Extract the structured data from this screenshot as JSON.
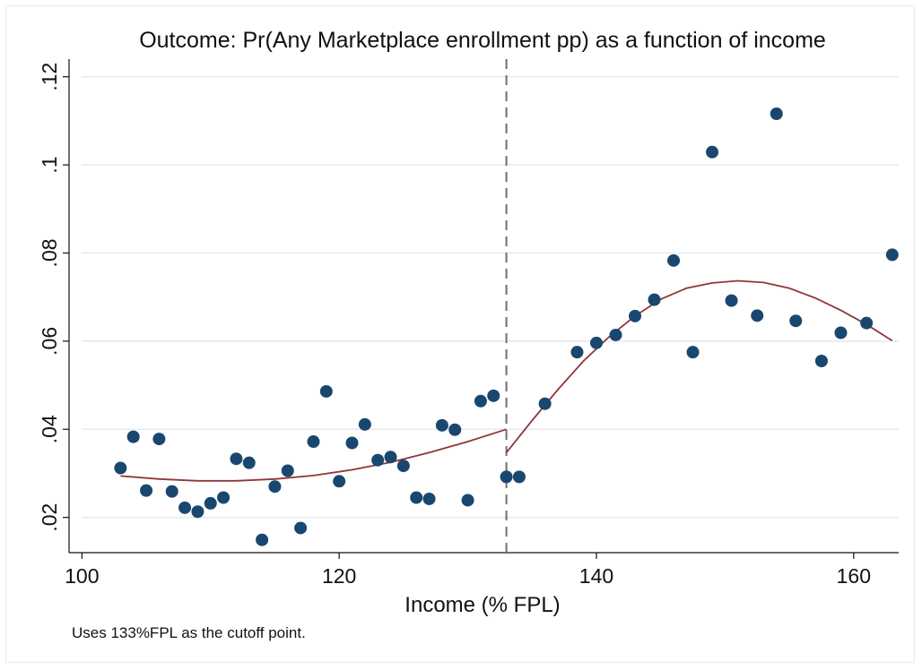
{
  "chart_data": {
    "type": "scatter",
    "title": "Outcome: Pr(Any Marketplace enrollment pp) as a function of income",
    "xlabel": "Income (% FPL)",
    "ylabel": "",
    "note": "Uses 133%FPL as the cutoff point.",
    "xlim": [
      99,
      163.5
    ],
    "ylim": [
      0.012,
      0.124
    ],
    "xticks": [
      {
        "value": 100,
        "label": "100"
      },
      {
        "value": 120,
        "label": "120"
      },
      {
        "value": 140,
        "label": "140"
      },
      {
        "value": 160,
        "label": "160"
      }
    ],
    "yticks": [
      {
        "value": 0.02,
        "label": ".02"
      },
      {
        "value": 0.04,
        "label": ".04"
      },
      {
        "value": 0.06,
        "label": ".06"
      },
      {
        "value": 0.08,
        "label": ".08"
      },
      {
        "value": 0.1,
        "label": ".1"
      },
      {
        "value": 0.12,
        "label": ".12"
      }
    ],
    "grid": true,
    "cutoff": 133,
    "colors": {
      "points": "#1a476f",
      "fit": "#90353b",
      "cutoff": "#6f6f6f",
      "grid": "#e5ebf0"
    },
    "points": [
      {
        "x": 103,
        "y": 0.0312
      },
      {
        "x": 104,
        "y": 0.0383
      },
      {
        "x": 105,
        "y": 0.0261
      },
      {
        "x": 106,
        "y": 0.0378
      },
      {
        "x": 107,
        "y": 0.0259
      },
      {
        "x": 108,
        "y": 0.0222
      },
      {
        "x": 109,
        "y": 0.0213
      },
      {
        "x": 110,
        "y": 0.0232
      },
      {
        "x": 111,
        "y": 0.0245
      },
      {
        "x": 112,
        "y": 0.0333
      },
      {
        "x": 113,
        "y": 0.0324
      },
      {
        "x": 114,
        "y": 0.0149
      },
      {
        "x": 115,
        "y": 0.027
      },
      {
        "x": 116,
        "y": 0.0306
      },
      {
        "x": 117,
        "y": 0.0176
      },
      {
        "x": 118,
        "y": 0.0372
      },
      {
        "x": 119,
        "y": 0.0486
      },
      {
        "x": 120,
        "y": 0.0282
      },
      {
        "x": 121,
        "y": 0.0369
      },
      {
        "x": 122,
        "y": 0.0411
      },
      {
        "x": 123,
        "y": 0.033
      },
      {
        "x": 124,
        "y": 0.0337
      },
      {
        "x": 125,
        "y": 0.0317
      },
      {
        "x": 126,
        "y": 0.0245
      },
      {
        "x": 127,
        "y": 0.0242
      },
      {
        "x": 128,
        "y": 0.0409
      },
      {
        "x": 129,
        "y": 0.0399
      },
      {
        "x": 130,
        "y": 0.0239
      },
      {
        "x": 131,
        "y": 0.0464
      },
      {
        "x": 132,
        "y": 0.0476
      },
      {
        "x": 133,
        "y": 0.0292
      },
      {
        "x": 134,
        "y": 0.0292
      },
      {
        "x": 136,
        "y": 0.0458
      },
      {
        "x": 138.5,
        "y": 0.0575
      },
      {
        "x": 140,
        "y": 0.0596
      },
      {
        "x": 141.5,
        "y": 0.0614
      },
      {
        "x": 143,
        "y": 0.0657
      },
      {
        "x": 144.5,
        "y": 0.0694
      },
      {
        "x": 146,
        "y": 0.0783
      },
      {
        "x": 147.5,
        "y": 0.0575
      },
      {
        "x": 149,
        "y": 0.1029
      },
      {
        "x": 150.5,
        "y": 0.0692
      },
      {
        "x": 152.5,
        "y": 0.0658
      },
      {
        "x": 154,
        "y": 0.1116
      },
      {
        "x": 155.5,
        "y": 0.0646
      },
      {
        "x": 157.5,
        "y": 0.0555
      },
      {
        "x": 159,
        "y": 0.0619
      },
      {
        "x": 161,
        "y": 0.0641
      },
      {
        "x": 163,
        "y": 0.0796
      }
    ],
    "fit_left": [
      {
        "x": 103,
        "y": 0.0294
      },
      {
        "x": 106,
        "y": 0.0287
      },
      {
        "x": 109,
        "y": 0.0283
      },
      {
        "x": 112,
        "y": 0.0283
      },
      {
        "x": 115,
        "y": 0.0287
      },
      {
        "x": 118,
        "y": 0.0295
      },
      {
        "x": 121,
        "y": 0.0308
      },
      {
        "x": 124,
        "y": 0.0325
      },
      {
        "x": 127,
        "y": 0.0347
      },
      {
        "x": 130,
        "y": 0.0372
      },
      {
        "x": 133,
        "y": 0.04
      }
    ],
    "fit_right": [
      {
        "x": 133,
        "y": 0.0347
      },
      {
        "x": 135,
        "y": 0.042
      },
      {
        "x": 137,
        "y": 0.049
      },
      {
        "x": 139,
        "y": 0.0555
      },
      {
        "x": 141,
        "y": 0.061
      },
      {
        "x": 143,
        "y": 0.0657
      },
      {
        "x": 145,
        "y": 0.0695
      },
      {
        "x": 147,
        "y": 0.072
      },
      {
        "x": 149,
        "y": 0.0732
      },
      {
        "x": 151,
        "y": 0.0737
      },
      {
        "x": 153,
        "y": 0.0733
      },
      {
        "x": 155,
        "y": 0.072
      },
      {
        "x": 157,
        "y": 0.0698
      },
      {
        "x": 159,
        "y": 0.067
      },
      {
        "x": 161,
        "y": 0.0638
      },
      {
        "x": 163,
        "y": 0.0601
      }
    ]
  }
}
